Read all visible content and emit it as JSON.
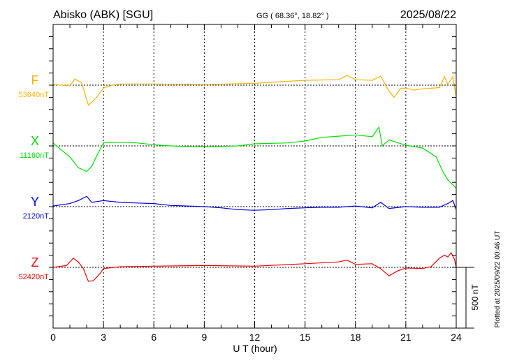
{
  "chart_data": {
    "type": "line",
    "title": "Abisko (ABK)  [SGU]",
    "coords": "GG ( 68.36°,  18.82° )",
    "date": "2025/08/22",
    "xlabel": "U T (hour)",
    "xlim": [
      0,
      24
    ],
    "xticks": [
      "0",
      "3",
      "6",
      "9",
      "12",
      "15",
      "18",
      "21",
      "24"
    ],
    "xtick_values": [
      0,
      3,
      6,
      9,
      12,
      15,
      18,
      21,
      24
    ],
    "y_span_nT": 2500,
    "grid": "dotted vertical lines every 3 h, dotted baseline per component",
    "scale_bar": "500 nT",
    "footer": "Plotted at 2025/09/22 00:46 UT",
    "series": [
      {
        "name": "F",
        "baseline_label": "53640nT",
        "color": "#f5b400",
        "offset_nT": 500,
        "points": [
          [
            0,
            5
          ],
          [
            1,
            -5
          ],
          [
            1.3,
            50
          ],
          [
            1.7,
            20
          ],
          [
            2.1,
            -165
          ],
          [
            2.3,
            -140
          ],
          [
            2.6,
            -100
          ],
          [
            3,
            -25
          ],
          [
            3.5,
            0
          ],
          [
            4,
            10
          ],
          [
            6,
            10
          ],
          [
            9,
            5
          ],
          [
            12,
            15
          ],
          [
            15,
            40
          ],
          [
            17,
            45
          ],
          [
            17.5,
            80
          ],
          [
            18,
            45
          ],
          [
            19,
            40
          ],
          [
            19.5,
            75
          ],
          [
            20,
            -50
          ],
          [
            20.3,
            -100
          ],
          [
            20.7,
            -25
          ],
          [
            21,
            -25
          ],
          [
            21.5,
            -40
          ],
          [
            22,
            -30
          ],
          [
            23,
            -20
          ],
          [
            23.3,
            70
          ],
          [
            23.5,
            5
          ],
          [
            23.8,
            70
          ],
          [
            24,
            -100
          ]
        ]
      },
      {
        "name": "X",
        "baseline_label": "11160nT",
        "color": "#00e000",
        "offset_nT": 1000,
        "points": [
          [
            0,
            25
          ],
          [
            0.5,
            -35
          ],
          [
            1,
            -90
          ],
          [
            1.5,
            -180
          ],
          [
            2,
            -210
          ],
          [
            2.3,
            -170
          ],
          [
            2.5,
            -110
          ],
          [
            3,
            25
          ],
          [
            4,
            30
          ],
          [
            5,
            25
          ],
          [
            6,
            10
          ],
          [
            7,
            0
          ],
          [
            8,
            -5
          ],
          [
            9,
            -5
          ],
          [
            10,
            -5
          ],
          [
            11,
            0
          ],
          [
            12,
            17
          ],
          [
            14,
            25
          ],
          [
            15,
            40
          ],
          [
            16,
            70
          ],
          [
            17,
            80
          ],
          [
            18,
            90
          ],
          [
            19,
            75
          ],
          [
            19.4,
            155
          ],
          [
            19.6,
            0
          ],
          [
            20,
            50
          ],
          [
            21,
            5
          ],
          [
            22,
            -17
          ],
          [
            22.8,
            -90
          ],
          [
            23.2,
            -210
          ],
          [
            23.5,
            -280
          ],
          [
            23.8,
            -320
          ],
          [
            24,
            -350
          ]
        ]
      },
      {
        "name": "Y",
        "baseline_label": "2120nT",
        "color": "#0000e0",
        "offset_nT": 1500,
        "points": [
          [
            0,
            5
          ],
          [
            1,
            25
          ],
          [
            1.5,
            50
          ],
          [
            2,
            85
          ],
          [
            2.3,
            35
          ],
          [
            3,
            50
          ],
          [
            4,
            35
          ],
          [
            5,
            30
          ],
          [
            6,
            25
          ],
          [
            7,
            10
          ],
          [
            8,
            5
          ],
          [
            9,
            0
          ],
          [
            10,
            -10
          ],
          [
            11,
            -25
          ],
          [
            12,
            -30
          ],
          [
            13,
            -25
          ],
          [
            14,
            -15
          ],
          [
            15,
            -10
          ],
          [
            16,
            -5
          ],
          [
            17,
            -5
          ],
          [
            18,
            5
          ],
          [
            19,
            -10
          ],
          [
            19.5,
            35
          ],
          [
            20,
            -15
          ],
          [
            21,
            0
          ],
          [
            22,
            -5
          ],
          [
            23,
            -5
          ],
          [
            23.5,
            25
          ],
          [
            23.8,
            50
          ],
          [
            24,
            -25
          ]
        ]
      },
      {
        "name": "Z",
        "baseline_label": "52420nT",
        "color": "#f00000",
        "offset_nT": 2000,
        "points": [
          [
            0,
            0
          ],
          [
            0.8,
            15
          ],
          [
            1.2,
            75
          ],
          [
            1.5,
            45
          ],
          [
            1.8,
            -10
          ],
          [
            2.1,
            -115
          ],
          [
            2.4,
            -110
          ],
          [
            2.8,
            -50
          ],
          [
            3,
            -10
          ],
          [
            4,
            5
          ],
          [
            6,
            10
          ],
          [
            9,
            15
          ],
          [
            12,
            10
          ],
          [
            15,
            30
          ],
          [
            17,
            45
          ],
          [
            17.5,
            60
          ],
          [
            18,
            25
          ],
          [
            19,
            30
          ],
          [
            19.5,
            -10
          ],
          [
            20,
            -70
          ],
          [
            20.5,
            -30
          ],
          [
            21,
            -5
          ],
          [
            22,
            -10
          ],
          [
            22.5,
            5
          ],
          [
            23,
            75
          ],
          [
            23.3,
            100
          ],
          [
            23.5,
            85
          ],
          [
            23.7,
            120
          ],
          [
            23.9,
            65
          ],
          [
            24,
            0
          ]
        ]
      }
    ]
  }
}
